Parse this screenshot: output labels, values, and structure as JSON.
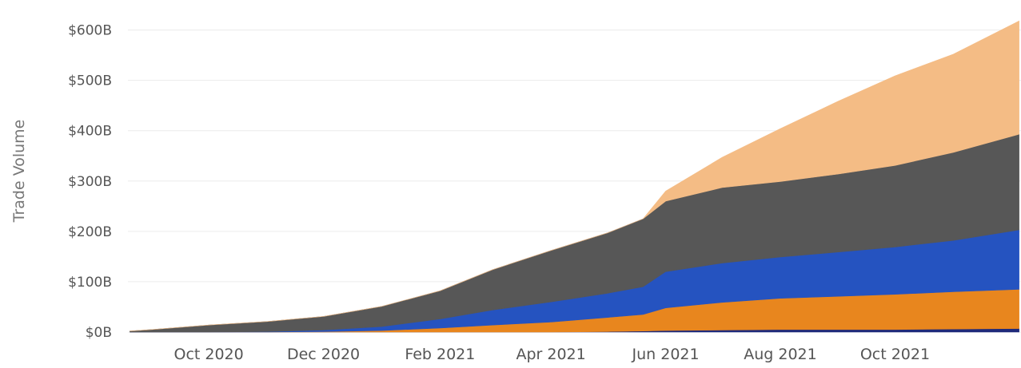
{
  "chart_data": {
    "type": "area",
    "stacked": true,
    "title": "",
    "xlabel": "",
    "ylabel": "Trade Volume",
    "ylim": [
      0,
      620
    ],
    "yticks": [
      0,
      100,
      200,
      300,
      400,
      500,
      600
    ],
    "ytick_labels": [
      "$0B",
      "$100B",
      "$200B",
      "$300B",
      "$400B",
      "$500B",
      "$600B"
    ],
    "xticks": [
      "2020-10-01",
      "2020-12-01",
      "2021-02-01",
      "2021-04-01",
      "2021-06-01",
      "2021-08-01",
      "2021-10-01"
    ],
    "xtick_labels": [
      "Oct 2020",
      "Dec 2020",
      "Feb 2021",
      "Apr 2021",
      "Jun 2021",
      "Aug 2021",
      "Oct 2021"
    ],
    "xlim": [
      "2020-08-19",
      "2021-12-07"
    ],
    "grid": true,
    "legend": "none",
    "x": [
      "2020-08-20",
      "2020-09-01",
      "2020-10-01",
      "2020-11-01",
      "2020-12-01",
      "2021-01-01",
      "2021-02-01",
      "2021-03-01",
      "2021-04-01",
      "2021-05-01",
      "2021-05-20",
      "2021-06-01",
      "2021-07-01",
      "2021-08-01",
      "2021-09-01",
      "2021-10-01",
      "2021-11-01",
      "2021-12-06"
    ],
    "series": [
      {
        "color": "#1f2a7a",
        "values": [
          0,
          0,
          0,
          0,
          0,
          0,
          0,
          0,
          0,
          1,
          2,
          3,
          4,
          5,
          5,
          5,
          6,
          7
        ]
      },
      {
        "color": "#e8861e",
        "values": [
          0,
          0,
          0,
          0,
          1,
          3,
          8,
          14,
          20,
          28,
          33,
          45,
          55,
          62,
          66,
          70,
          74,
          78
        ]
      },
      {
        "color": "#2553c0",
        "values": [
          0,
          0,
          0,
          1,
          3,
          8,
          18,
          30,
          40,
          48,
          55,
          72,
          78,
          82,
          88,
          94,
          102,
          118
        ]
      },
      {
        "color": "#575757",
        "values": [
          2,
          5,
          14,
          20,
          27,
          40,
          56,
          80,
          102,
          120,
          135,
          140,
          150,
          150,
          155,
          162,
          175,
          190
        ]
      },
      {
        "color": "#f4bc85",
        "values": [
          0,
          0,
          0,
          0,
          0,
          0,
          0,
          0,
          0,
          0,
          0,
          20,
          60,
          105,
          145,
          178,
          195,
          225
        ]
      }
    ]
  }
}
